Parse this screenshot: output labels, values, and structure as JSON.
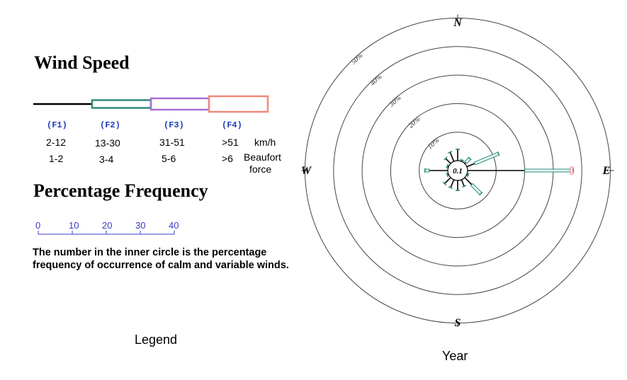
{
  "legend": {
    "wind_speed_title": "Wind Speed",
    "classes": [
      {
        "code": "(F1)",
        "kmh": "2-12",
        "beaufort": "1-2",
        "color": "#000000"
      },
      {
        "code": "(F2)",
        "kmh": "13-30",
        "beaufort": "3-4",
        "color": "#2e8b7a"
      },
      {
        "code": "(F3)",
        "kmh": "31-51",
        "beaufort": "5-6",
        "color": "#a86fd6"
      },
      {
        "code": "(F4)",
        "kmh": ">51",
        "beaufort": ">6",
        "color": "#f08a78"
      }
    ],
    "kmh_unit": "km/h",
    "beaufort_unit_line1": "Beaufort",
    "beaufort_unit_line2": "force",
    "percentage_title": "Percentage Frequency",
    "scale_ticks": [
      "0",
      "10",
      "20",
      "30",
      "40"
    ],
    "scale_color": "#3b3bc4",
    "note": "The number in the inner circle is the percentage frequency of occurrence of calm and variable winds.",
    "caption": "Legend"
  },
  "chart_data": {
    "type": "wind-rose",
    "caption": "Year",
    "compass": {
      "n": "N",
      "e": "E",
      "s": "S",
      "w": "W"
    },
    "ring_labels": [
      "10%",
      "20%",
      "30%",
      "40%",
      "50%"
    ],
    "ring_values": [
      10,
      20,
      30,
      40,
      50
    ],
    "calm_label": "0.1",
    "calm_percent": 0.1,
    "directions": [
      {
        "dir": "N",
        "angle": 0,
        "total": 4.0,
        "segments": [
          4.0,
          0,
          0,
          0
        ]
      },
      {
        "dir": "NNE",
        "angle": 22.5,
        "total": 0.5,
        "segments": [
          0.5,
          0,
          0,
          0
        ]
      },
      {
        "dir": "NE",
        "angle": 45,
        "total": 2.5,
        "segments": [
          0.5,
          2.0,
          0,
          0
        ]
      },
      {
        "dir": "ENE",
        "angle": 67.5,
        "total": 12.0,
        "segments": [
          3.0,
          9.0,
          0,
          0
        ]
      },
      {
        "dir": "E",
        "angle": 90,
        "total": 37.0,
        "segments": [
          20.0,
          16.0,
          0,
          1.0
        ]
      },
      {
        "dir": "ESE",
        "angle": 112.5,
        "total": 0.5,
        "segments": [
          0.5,
          0,
          0,
          0
        ]
      },
      {
        "dir": "SE",
        "angle": 135,
        "total": 8.0,
        "segments": [
          3.5,
          4.5,
          0,
          0
        ]
      },
      {
        "dir": "SSE",
        "angle": 157.5,
        "total": 2.5,
        "segments": [
          2.5,
          0,
          0,
          0
        ]
      },
      {
        "dir": "S",
        "angle": 180,
        "total": 3.5,
        "segments": [
          3.5,
          0,
          0,
          0
        ]
      },
      {
        "dir": "SSW",
        "angle": 202.5,
        "total": 3.0,
        "segments": [
          3.0,
          0,
          0,
          0
        ]
      },
      {
        "dir": "SW",
        "angle": 225,
        "total": 3.0,
        "segments": [
          3.0,
          0,
          0,
          0
        ]
      },
      {
        "dir": "WSW",
        "angle": 247.5,
        "total": 0.5,
        "segments": [
          0.5,
          0,
          0,
          0
        ]
      },
      {
        "dir": "W",
        "angle": 270,
        "total": 8.0,
        "segments": [
          6.5,
          1.5,
          0,
          0
        ]
      },
      {
        "dir": "WNW",
        "angle": 292.5,
        "total": 0.5,
        "segments": [
          0.5,
          0,
          0,
          0
        ]
      },
      {
        "dir": "NW",
        "angle": 315,
        "total": 2.5,
        "segments": [
          2.5,
          0,
          0,
          0
        ]
      },
      {
        "dir": "NNW",
        "angle": 337.5,
        "total": 3.5,
        "segments": [
          3.5,
          0,
          0,
          0
        ]
      }
    ]
  }
}
